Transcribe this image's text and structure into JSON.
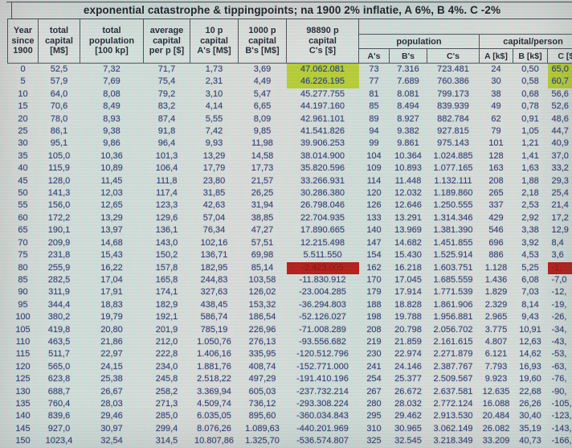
{
  "title": "exponential catastrophe & tippingpoints; na 1900 2% inflatie, A 6%, B 4%. C -2%",
  "colors": {
    "highlight_green": "#b6ce31",
    "highlight_red": "#b41712",
    "data_text": "#2c3b74",
    "header_text": "#1d2331"
  },
  "table": {
    "columns": [
      {
        "l1": "Year",
        "l2": "since",
        "l3": "1900"
      },
      {
        "l1": "total",
        "l2": "capital",
        "l3": "[M$]"
      },
      {
        "l1": "total",
        "l2": "population",
        "l3": "[100 kp]"
      },
      {
        "l1": "average",
        "l2": "capital",
        "l3": "per p [$]"
      },
      {
        "l1": "10 p",
        "l2": "capital",
        "l3": "A's [M$]"
      },
      {
        "l1": "1000 p",
        "l2": "capital",
        "l3": "B's [M$]"
      },
      {
        "l1": "98890 p",
        "l2": "capital",
        "l3": "C's [$]"
      }
    ],
    "groups": [
      {
        "label": "population",
        "subs": [
          "A's",
          "B's",
          "C's"
        ]
      },
      {
        "label": "capital/person",
        "subs": [
          "A [k$]",
          "B [k$]",
          "C [$]"
        ]
      }
    ],
    "rows": [
      [
        "0",
        "52,5",
        "7,32",
        "71,7",
        "1,73",
        "3,69",
        "47.062.081",
        "73",
        "7.316",
        "723.481",
        "24",
        "0,50",
        "65,0"
      ],
      [
        "5",
        "57,9",
        "7,69",
        "75,4",
        "2,31",
        "4,49",
        "46.226.195",
        "77",
        "7.689",
        "760.386",
        "30",
        "0,58",
        "60,7"
      ],
      [
        "10",
        "64,0",
        "8,08",
        "79,2",
        "3,10",
        "5,47",
        "45.277.755",
        "81",
        "8.081",
        "799.173",
        "38",
        "0,68",
        "56,6"
      ],
      [
        "15",
        "70,6",
        "8,49",
        "83,2",
        "4,14",
        "6,65",
        "44.197.160",
        "85",
        "8.494",
        "839.939",
        "49",
        "0,78",
        "52,6"
      ],
      [
        "20",
        "78,0",
        "8,93",
        "87,4",
        "5,55",
        "8,09",
        "42.961.101",
        "89",
        "8.927",
        "882.784",
        "62",
        "0,91",
        "48,6"
      ],
      [
        "25",
        "86,1",
        "9,38",
        "91,8",
        "7,42",
        "9,85",
        "41.541.826",
        "94",
        "9.382",
        "927.815",
        "79",
        "1,05",
        "44,7"
      ],
      [
        "30",
        "95,1",
        "9,86",
        "96,4",
        "9,93",
        "11,98",
        "39.906.253",
        "99",
        "9.861",
        "975.143",
        "101",
        "1,21",
        "40,9"
      ],
      [
        "35",
        "105,0",
        "10,36",
        "101,3",
        "13,29",
        "14,58",
        "38.014.900",
        "104",
        "10.364",
        "1.024.885",
        "128",
        "1,41",
        "37,0"
      ],
      [
        "40",
        "115,9",
        "10,89",
        "106,4",
        "17,79",
        "17,73",
        "35.820.596",
        "109",
        "10.893",
        "1.077.165",
        "163",
        "1,63",
        "33,2"
      ],
      [
        "45",
        "128,0",
        "11,45",
        "111,8",
        "23,80",
        "21,57",
        "33.266.931",
        "114",
        "11.448",
        "1.132.111",
        "208",
        "1,88",
        "29,3"
      ],
      [
        "50",
        "141,3",
        "12,03",
        "117,4",
        "31,85",
        "26,25",
        "30.286.380",
        "120",
        "12.032",
        "1.189.860",
        "265",
        "2,18",
        "25,4"
      ],
      [
        "55",
        "156,0",
        "12,65",
        "123,3",
        "42,63",
        "31,94",
        "26.798.046",
        "126",
        "12.646",
        "1.250.555",
        "337",
        "2,53",
        "21,4"
      ],
      [
        "60",
        "172,2",
        "13,29",
        "129,6",
        "57,04",
        "38,85",
        "22.704.935",
        "133",
        "13.291",
        "1.314.346",
        "429",
        "2,92",
        "17,2"
      ],
      [
        "65",
        "190,1",
        "13,97",
        "136,1",
        "76,34",
        "47,27",
        "17.890.665",
        "140",
        "13.969",
        "1.381.390",
        "546",
        "3,38",
        "12,9"
      ],
      [
        "70",
        "209,9",
        "14,68",
        "143,0",
        "102,16",
        "57,51",
        "12.215.498",
        "147",
        "14.682",
        "1.451.855",
        "696",
        "3,92",
        "8,4"
      ],
      [
        "75",
        "231,8",
        "15,43",
        "150,2",
        "136,71",
        "69,98",
        "5.511.550",
        "154",
        "15.430",
        "1.525.914",
        "886",
        "4,53",
        "3,6"
      ],
      [
        "80",
        "255,9",
        "16,22",
        "157,8",
        "182,95",
        "85,14",
        "-2.423.005",
        "162",
        "16.218",
        "1.603.751",
        "1.128",
        "5,25",
        "-1,"
      ],
      [
        "85",
        "282,5",
        "17,04",
        "165,8",
        "244,83",
        "103,58",
        "-11.830.912",
        "170",
        "17.045",
        "1.685.559",
        "1.436",
        "6,08",
        "-7,0"
      ],
      [
        "90",
        "311,9",
        "17,91",
        "174,1",
        "327,63",
        "126,02",
        "-23.004.285",
        "179",
        "17.914",
        "1.771.539",
        "1.829",
        "7,03",
        "-12,"
      ],
      [
        "95",
        "344,4",
        "18,83",
        "182,9",
        "438,45",
        "153,32",
        "-36.294.803",
        "188",
        "18.828",
        "1.861.906",
        "2.329",
        "8,14",
        "-19,"
      ],
      [
        "100",
        "380,2",
        "19,79",
        "192,1",
        "586,74",
        "186,54",
        "-52.126.027",
        "198",
        "19.788",
        "1.956.881",
        "2.965",
        "9,43",
        "-26,"
      ],
      [
        "105",
        "419,8",
        "20,80",
        "201,9",
        "785,19",
        "226,96",
        "-71.008.289",
        "208",
        "20.798",
        "2.056.702",
        "3.775",
        "10,91",
        "-34,"
      ],
      [
        "110",
        "463,5",
        "21,86",
        "212,0",
        "1.050,76",
        "276,13",
        "-93.556.682",
        "219",
        "21.859",
        "2.161.615",
        "4.807",
        "12,63",
        "-43,"
      ],
      [
        "115",
        "511,7",
        "22,97",
        "222,8",
        "1.406,16",
        "335,95",
        "-120.512.796",
        "230",
        "22.974",
        "2.271.879",
        "6.121",
        "14,62",
        "-53,"
      ],
      [
        "120",
        "565,0",
        "24,15",
        "234,0",
        "1.881,76",
        "408,74",
        "-152.771.000",
        "241",
        "24.146",
        "2.387.767",
        "7.793",
        "16,93",
        "-63,"
      ],
      [
        "125",
        "623,8",
        "25,38",
        "245,8",
        "2.518,22",
        "497,29",
        "-191.410.196",
        "254",
        "25.377",
        "2.509.567",
        "9.923",
        "19,60",
        "-76,"
      ],
      [
        "130",
        "688,7",
        "26,67",
        "258,2",
        "3.369,94",
        "605,03",
        "-237.732.214",
        "267",
        "26.672",
        "2.637.581",
        "12.635",
        "22,68",
        "-90,"
      ],
      [
        "135",
        "760,4",
        "28,03",
        "271,3",
        "4.509,74",
        "736,12",
        "-293.308.224",
        "280",
        "28.032",
        "2.772.124",
        "16.088",
        "26,26",
        "-105,"
      ],
      [
        "140",
        "839,6",
        "29,46",
        "285,0",
        "6.035,05",
        "895,60",
        "-360.034.843",
        "295",
        "29.462",
        "2.913.530",
        "20.484",
        "30,40",
        "-123,"
      ],
      [
        "145",
        "927,0",
        "30,97",
        "299,4",
        "8.076,26",
        "1.089,63",
        "-440.201.969",
        "310",
        "30.965",
        "3.062.149",
        "26.082",
        "35,19",
        "-143,"
      ],
      [
        "150",
        "1023,4",
        "32,54",
        "314,5",
        "10.807,86",
        "1.325,70",
        "-536.574.807",
        "325",
        "32.545",
        "3.218.349",
        "33.209",
        "40,73",
        "-166,"
      ]
    ],
    "highlights": {
      "green": [
        {
          "row": 0,
          "col": 6
        },
        {
          "row": 0,
          "col": 12
        },
        {
          "row": 1,
          "col": 6
        },
        {
          "row": 1,
          "col": 12
        }
      ],
      "red": [
        {
          "row": 16,
          "col": 6
        },
        {
          "row": 16,
          "col": 12
        }
      ]
    }
  }
}
